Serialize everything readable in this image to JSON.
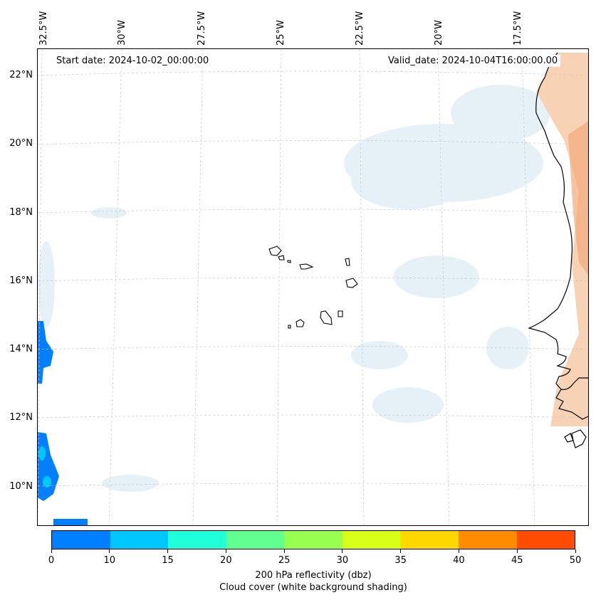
{
  "map": {
    "start_date": "Start date: 2024-10-02_00:00:00",
    "valid_date": "Valid_date: 2024-10-04T16:00:00.00",
    "lat_labels": [
      "22°N",
      "20°N",
      "18°N",
      "16°N",
      "14°N",
      "12°N",
      "10°N"
    ],
    "lon_labels": [
      "32.5°W",
      "30°W",
      "27.5°W",
      "25°W",
      "22.5°W",
      "20°W",
      "17.5°W"
    ],
    "colors": {
      "land_shade": "#f7c9a6",
      "cloud_shade": "#e3f0f6",
      "coast": "#000000",
      "grid": "#bbbbbb"
    }
  },
  "colorbar": {
    "ticks": [
      "0",
      "10",
      "15",
      "20",
      "25",
      "30",
      "35",
      "40",
      "45",
      "50"
    ],
    "colors": [
      "#0080ff",
      "#00c8ff",
      "#20ffd8",
      "#60ff90",
      "#98ff50",
      "#d8ff18",
      "#ffd800",
      "#ff8c00",
      "#ff4c00"
    ],
    "label_line1": "200 hPa reflectivity (dbz)",
    "label_line2": "Cloud cover (white background shading)"
  }
}
